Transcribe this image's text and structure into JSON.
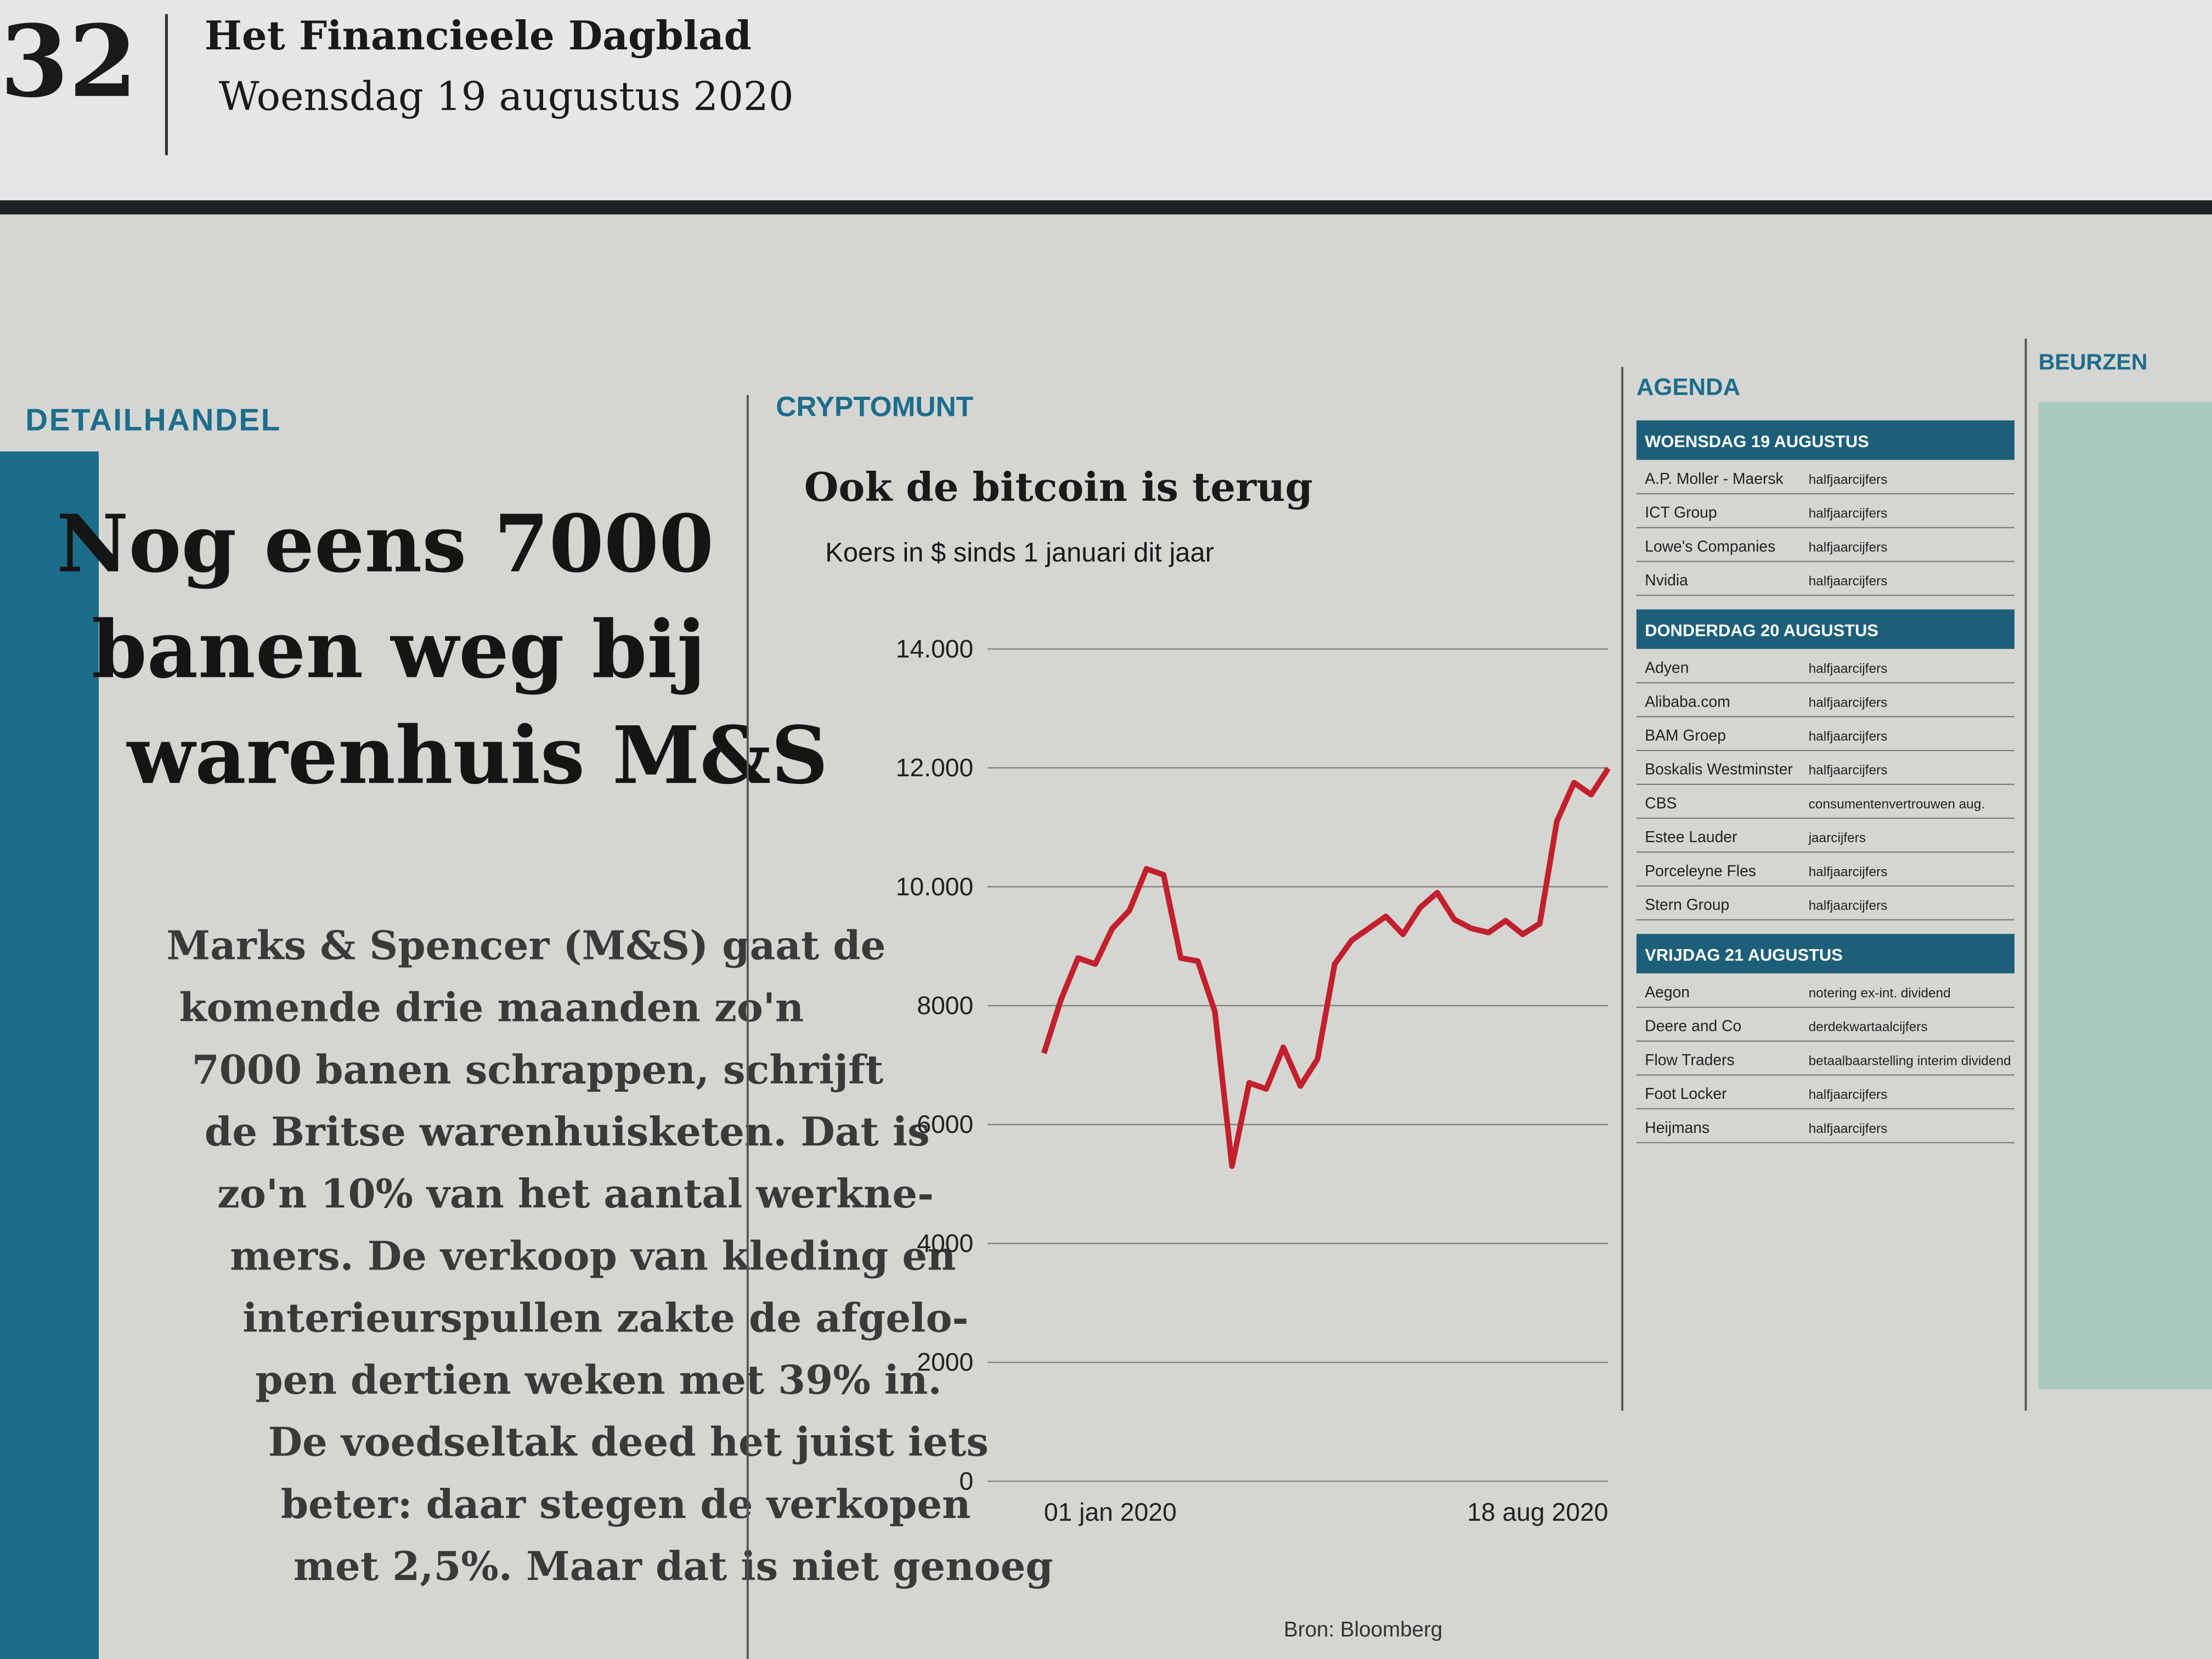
{
  "header": {
    "page_number": "32",
    "paper": "Het Financieele Dagblad",
    "date": "Woensdag 19 augustus 2020"
  },
  "article": {
    "section": "DETAILHANDEL",
    "headline": [
      "Nog eens 7000",
      "banen weg bij",
      "warenhuis M&S"
    ],
    "body": [
      "Marks & Spencer (M&S) gaat de",
      "komende drie maanden zo'n",
      "7000 banen schrappen, schrijft",
      "de Britse warenhuisketen. Dat is",
      "zo'n 10% van het aantal werkne-",
      "mers. De verkoop van kleding en",
      "interieurspullen zakte de afgelo-",
      "pen dertien weken met 39% in.",
      "De voedseltak deed het juist iets",
      "beter: daar stegen de verkopen",
      "met 2,5%. Maar dat is niet genoeg"
    ]
  },
  "chart_data": {
    "type": "line",
    "section": "CRYPTOMUNT",
    "title": "Ook de bitcoin is terug",
    "subtitle": "Koers in $ sinds 1 januari dit jaar",
    "source": "Bron: Bloomberg",
    "categories": [
      "01 jan 2020",
      null,
      null,
      null,
      null,
      null,
      null,
      null,
      null,
      null,
      null,
      null,
      null,
      null,
      null,
      null,
      null,
      null,
      null,
      null,
      null,
      null,
      null,
      null,
      null,
      null,
      null,
      null,
      null,
      null,
      null,
      null,
      null,
      "18 aug 2020"
    ],
    "series": [
      {
        "name": "Bitcoin",
        "color": "#c2202d",
        "values": [
          7200,
          8100,
          8800,
          8700,
          9300,
          9600,
          10300,
          10200,
          8800,
          8750,
          7900,
          5300,
          6700,
          6600,
          7300,
          6650,
          7100,
          8700,
          9100,
          9300,
          9500,
          9200,
          9650,
          9900,
          9450,
          9300,
          9230,
          9430,
          9200,
          9380,
          11100,
          11750,
          11550,
          11990
        ]
      }
    ],
    "ylim": [
      0,
      14000
    ],
    "yticks": [
      0,
      2000,
      4000,
      6000,
      8000,
      {
        "value": 10000,
        "label": "10.000"
      },
      {
        "value": 12000,
        "label": "12.000"
      },
      {
        "value": 14000,
        "label": "14.000"
      }
    ],
    "grid": true
  },
  "agenda": {
    "section": "AGENDA",
    "days": [
      {
        "day": "WOENSDAG 19 AUGUSTUS",
        "items": [
          [
            "A.P. Moller - Maersk",
            "halfjaarcijfers"
          ],
          [
            "ICT Group",
            "halfjaarcijfers"
          ],
          [
            "Lowe's Companies",
            "halfjaarcijfers"
          ],
          [
            "Nvidia",
            "halfjaarcijfers"
          ]
        ]
      },
      {
        "day": "DONDERDAG 20 AUGUSTUS",
        "items": [
          [
            "Adyen",
            "halfjaarcijfers"
          ],
          [
            "Alibaba.com",
            "halfjaarcijfers"
          ],
          [
            "BAM Groep",
            "halfjaarcijfers"
          ],
          [
            "Boskalis Westminster",
            "halfjaarcijfers"
          ],
          [
            "CBS",
            "consumentenvertrouwen aug."
          ],
          [
            "Estee Lauder",
            "jaarcijfers"
          ],
          [
            "Porceleyne Fles",
            "halfjaarcijfers"
          ],
          [
            "Stern Group",
            "halfjaarcijfers"
          ]
        ]
      },
      {
        "day": "VRIJDAG 21 AUGUSTUS",
        "items": [
          [
            "Aegon",
            "notering ex-int. dividend"
          ],
          [
            "Deere and Co",
            "derdekwartaalcijfers"
          ],
          [
            "Flow Traders",
            "betaalbaarstelling interim dividend"
          ],
          [
            "Foot Locker",
            "halfjaarcijfers"
          ],
          [
            "Heijmans",
            "halfjaarcijfers"
          ]
        ]
      }
    ]
  },
  "markets": {
    "section": "BEURZEN"
  }
}
